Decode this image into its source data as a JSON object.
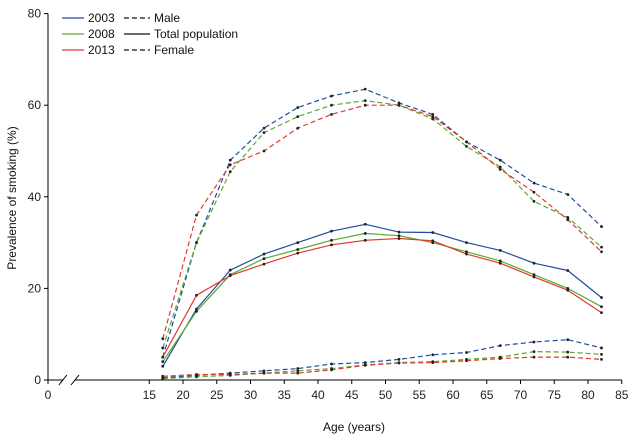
{
  "chart_data": {
    "type": "line",
    "xlabel": "Age (years)",
    "ylabel": "Prevalence of smoking (%)",
    "xlim": [
      0,
      85
    ],
    "ylim": [
      0,
      80
    ],
    "x_ticks": [
      0,
      15,
      20,
      25,
      30,
      35,
      40,
      45,
      50,
      55,
      60,
      65,
      70,
      75,
      80,
      85
    ],
    "y_ticks": [
      0,
      20,
      40,
      60,
      80
    ],
    "x_axis_break": true,
    "x": [
      17,
      22,
      27,
      32,
      37,
      42,
      47,
      52,
      57,
      62,
      67,
      72,
      77,
      82
    ],
    "legend": {
      "years": [
        {
          "label": "2003",
          "color": "#1f4e9e"
        },
        {
          "label": "2008",
          "color": "#5aa832"
        },
        {
          "label": "2013",
          "color": "#e03a2f"
        }
      ],
      "groups": [
        {
          "label": "Male",
          "style": "dashed"
        },
        {
          "label": "Total population",
          "style": "solid"
        },
        {
          "label": "Female",
          "style": "dashed"
        }
      ]
    },
    "series": [
      {
        "name": "2003 Male",
        "year": "2003",
        "group": "Male",
        "color": "#1f4e9e",
        "style": "dashed",
        "values": [
          5,
          30,
          48,
          55,
          59.5,
          62,
          63.5,
          60.5,
          58,
          52,
          48,
          43,
          40.5,
          33.5
        ]
      },
      {
        "name": "2008 Male",
        "year": "2008",
        "group": "Male",
        "color": "#5aa832",
        "style": "dashed",
        "values": [
          7,
          30,
          45.5,
          54,
          57.5,
          60,
          61,
          60,
          57,
          51,
          46.5,
          39,
          35.5,
          29
        ]
      },
      {
        "name": "2013 Male",
        "year": "2013",
        "group": "Male",
        "color": "#e03a2f",
        "style": "dashed",
        "values": [
          9,
          36,
          47,
          50,
          55,
          58,
          60,
          60,
          57.5,
          52,
          46,
          41,
          35,
          28
        ]
      },
      {
        "name": "2003 Total population",
        "year": "2003",
        "group": "Total population",
        "color": "#1f4e9e",
        "style": "solid",
        "values": [
          3,
          15.5,
          24,
          27.5,
          30,
          32.5,
          34,
          32.3,
          32.2,
          30,
          28.3,
          25.5,
          23.9,
          18
        ]
      },
      {
        "name": "2008 Total population",
        "year": "2008",
        "group": "Total population",
        "color": "#5aa832",
        "style": "solid",
        "values": [
          4,
          15,
          23,
          26.5,
          28.5,
          30.5,
          32,
          31.5,
          30,
          28,
          26,
          23,
          20,
          16
        ]
      },
      {
        "name": "2013 Total population",
        "year": "2013",
        "group": "Total population",
        "color": "#e03a2f",
        "style": "solid",
        "values": [
          5,
          18.5,
          22.8,
          25.3,
          27.7,
          29.5,
          30.5,
          30.9,
          30.4,
          27.5,
          25.5,
          22.5,
          19.6,
          14.7
        ]
      },
      {
        "name": "2003 Female",
        "year": "2003",
        "group": "Female",
        "color": "#1f4e9e",
        "style": "dashed",
        "values": [
          0.5,
          1,
          1.5,
          2,
          2.5,
          3.5,
          3.8,
          4.5,
          5.5,
          6,
          7.5,
          8.3,
          8.8,
          7
        ]
      },
      {
        "name": "2008 Female",
        "year": "2008",
        "group": "Female",
        "color": "#5aa832",
        "style": "dashed",
        "values": [
          0.3,
          0.7,
          1,
          1.5,
          2,
          2.5,
          3.3,
          3.8,
          4,
          4.5,
          5,
          6.2,
          6.1,
          5.6
        ]
      },
      {
        "name": "2013 Female",
        "year": "2013",
        "group": "Female",
        "color": "#e03a2f",
        "style": "dashed",
        "values": [
          0.8,
          1.2,
          1.2,
          1.5,
          1.5,
          2.2,
          3.2,
          3.7,
          3.8,
          4.2,
          4.7,
          5,
          5,
          4.5
        ]
      }
    ]
  }
}
